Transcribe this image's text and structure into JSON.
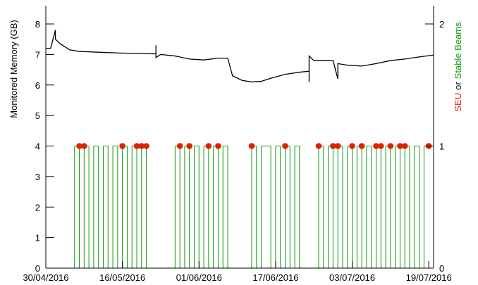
{
  "chart_data": {
    "type": "line",
    "ylabel": "Monitored Memory (GB)",
    "y2label_joiner": "or",
    "xlim": [
      "2016-04-30",
      "2016-07-20"
    ],
    "xticks": [
      {
        "value": "2016-04-30",
        "label": "30/04/2016"
      },
      {
        "value": "2016-05-16",
        "label": "16/05/2016"
      },
      {
        "value": "2016-06-01",
        "label": "01/06/2016"
      },
      {
        "value": "2016-06-17",
        "label": "17/06/2016"
      },
      {
        "value": "2016-07-03",
        "label": "03/07/2016"
      },
      {
        "value": "2016-07-19",
        "label": "19/07/2016"
      }
    ],
    "ylim": [
      0,
      8.6
    ],
    "yticks": [
      0,
      1,
      2,
      3,
      4,
      5,
      6,
      7,
      8
    ],
    "y2lim": [
      0,
      2.15
    ],
    "y2ticks": [
      0,
      1,
      2
    ],
    "series": [
      {
        "name": "Monitored Memory",
        "type": "line",
        "color": "#000000",
        "x": [
          "2016-04-30",
          "2016-05-01",
          "2016-05-02",
          "2016-05-02",
          "2016-05-03",
          "2016-05-04",
          "2016-05-05",
          "2016-05-07",
          "2016-05-10",
          "2016-05-15",
          "2016-05-20",
          "2016-05-23",
          "2016-05-23",
          "2016-05-23",
          "2016-05-24",
          "2016-05-27",
          "2016-05-30",
          "2016-06-02",
          "2016-06-05",
          "2016-06-07",
          "2016-06-08",
          "2016-06-10",
          "2016-06-12",
          "2016-06-14",
          "2016-06-16",
          "2016-06-19",
          "2016-06-22",
          "2016-06-24",
          "2016-06-24",
          "2016-06-24",
          "2016-06-25",
          "2016-06-29",
          "2016-06-30",
          "2016-06-30",
          "2016-07-02",
          "2016-07-05",
          "2016-07-08",
          "2016-07-11",
          "2016-07-14",
          "2016-07-17",
          "2016-07-20"
        ],
        "values": [
          7.2,
          7.2,
          7.8,
          7.5,
          7.35,
          7.25,
          7.15,
          7.1,
          7.08,
          7.05,
          7.03,
          7.02,
          7.3,
          6.9,
          7.0,
          6.95,
          6.85,
          6.82,
          6.88,
          6.88,
          6.3,
          6.15,
          6.1,
          6.12,
          6.22,
          6.35,
          6.42,
          6.45,
          6.1,
          6.95,
          6.8,
          6.8,
          6.2,
          6.7,
          6.65,
          6.62,
          6.7,
          6.8,
          6.85,
          6.92,
          6.98
        ]
      },
      {
        "name": "SEU",
        "type": "scatter",
        "axis": "y2",
        "color": "#dd2200",
        "x": [
          "2016-05-07",
          "2016-05-08",
          "2016-05-16",
          "2016-05-19",
          "2016-05-20",
          "2016-05-21",
          "2016-05-28",
          "2016-05-30",
          "2016-06-03",
          "2016-06-05",
          "2016-06-12",
          "2016-06-19",
          "2016-06-26",
          "2016-06-29",
          "2016-06-30",
          "2016-07-03",
          "2016-07-05",
          "2016-07-08",
          "2016-07-09",
          "2016-07-11",
          "2016-07-13",
          "2016-07-14",
          "2016-07-19"
        ],
        "values": [
          1,
          1,
          1,
          1,
          1,
          1,
          1,
          1,
          1,
          1,
          1,
          1,
          1,
          1,
          1,
          1,
          1,
          1,
          1,
          1,
          1,
          1,
          1
        ]
      },
      {
        "name": "Stable Beams",
        "type": "step",
        "axis": "y2",
        "color": "#119911",
        "x": [
          "2016-04-30",
          "2016-05-06",
          "2016-05-07",
          "2016-05-08",
          "2016-05-09",
          "2016-05-10",
          "2016-05-11",
          "2016-05-12",
          "2016-05-13",
          "2016-05-14",
          "2016-05-15",
          "2016-05-16",
          "2016-05-17",
          "2016-05-18",
          "2016-05-19",
          "2016-05-20",
          "2016-05-21",
          "2016-05-27",
          "2016-05-28",
          "2016-05-29",
          "2016-05-30",
          "2016-05-31",
          "2016-06-01",
          "2016-06-02",
          "2016-06-03",
          "2016-06-04",
          "2016-06-05",
          "2016-06-06",
          "2016-06-07",
          "2016-06-12",
          "2016-06-13",
          "2016-06-14",
          "2016-06-16",
          "2016-06-17",
          "2016-06-18",
          "2016-06-19",
          "2016-06-20",
          "2016-06-21",
          "2016-06-22",
          "2016-06-26",
          "2016-06-27",
          "2016-06-28",
          "2016-06-29",
          "2016-06-30",
          "2016-07-01",
          "2016-07-02",
          "2016-07-03",
          "2016-07-04",
          "2016-07-05",
          "2016-07-06",
          "2016-07-07",
          "2016-07-08",
          "2016-07-09",
          "2016-07-10",
          "2016-07-11",
          "2016-07-12",
          "2016-07-13",
          "2016-07-14",
          "2016-07-15",
          "2016-07-16",
          "2016-07-17",
          "2016-07-18",
          "2016-07-20"
        ],
        "values": [
          0,
          1,
          0,
          1,
          0,
          1,
          0,
          1,
          0,
          1,
          0,
          1,
          0,
          1,
          0,
          1,
          0,
          1,
          0,
          1,
          0,
          1,
          0,
          1,
          0,
          1,
          0,
          1,
          0,
          1,
          0,
          1,
          0,
          1,
          0,
          1,
          0,
          1,
          0,
          1,
          0,
          1,
          0,
          1,
          0,
          1,
          0,
          1,
          0,
          1,
          0,
          1,
          0,
          1,
          0,
          1,
          0,
          1,
          0,
          1,
          0,
          1,
          1
        ]
      }
    ]
  }
}
